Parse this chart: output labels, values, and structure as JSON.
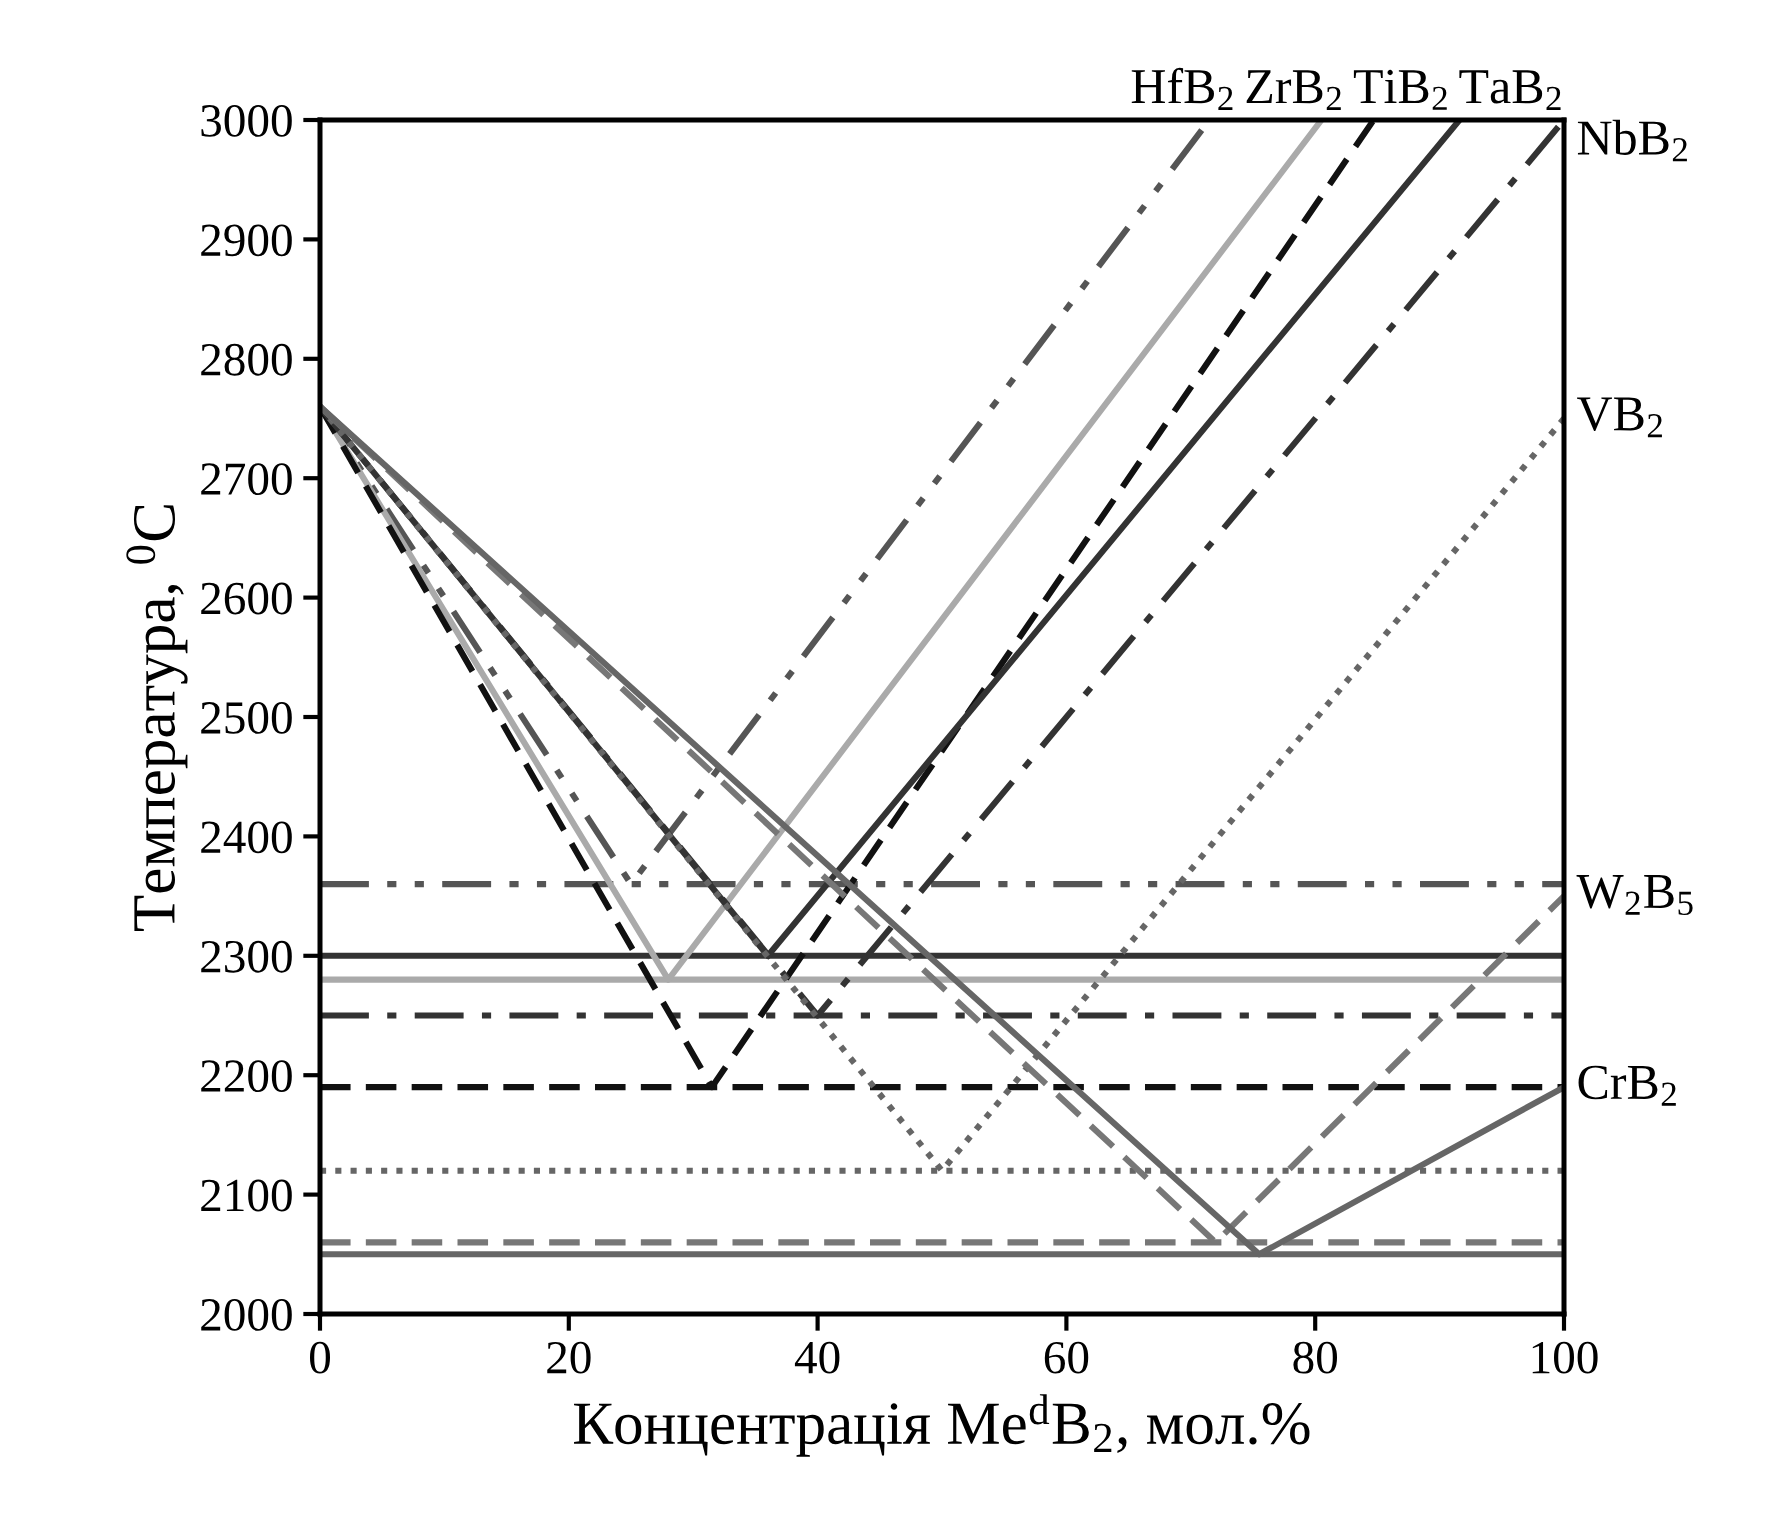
{
  "chart_data": {
    "type": "line",
    "xlabel": "Концентрація Me$^{d}$B$_{2}$, мол.%",
    "ylabel": "Температура, $^{0}$C",
    "xlim": [
      0,
      100
    ],
    "ylim": [
      2000,
      3000
    ],
    "xticks": [
      0,
      20,
      40,
      60,
      80,
      100
    ],
    "yticks": [
      2000,
      2100,
      2200,
      2300,
      2400,
      2500,
      2600,
      2700,
      2800,
      2900,
      3000
    ],
    "grid": false,
    "legend": false,
    "marker": "none",
    "series": [
      {
        "name": "HfB$_{2}$",
        "color": "#555555",
        "line_style": "dashdotdot",
        "x": [
          0,
          25,
          71.5
        ],
        "values": [
          2760,
          2360,
          3000
        ]
      },
      {
        "name": "ZrB$_{2}$",
        "color": "#aaaaaa",
        "line_style": "solid",
        "x": [
          0,
          28,
          80.5
        ],
        "values": [
          2760,
          2280,
          3000
        ]
      },
      {
        "name": "TiB$_{2}$",
        "color": "#111111",
        "line_style": "dashed",
        "x": [
          0,
          31.5,
          84.7
        ],
        "values": [
          2760,
          2190,
          3000
        ]
      },
      {
        "name": "TaB$_{2}$",
        "color": "#333333",
        "line_style": "solid",
        "x": [
          0,
          36,
          91.6
        ],
        "values": [
          2760,
          2300,
          3000
        ]
      },
      {
        "name": "NbB$_{2}$",
        "color": "#333333",
        "line_style": "dashdot",
        "x": [
          0,
          40,
          100
        ],
        "values": [
          2760,
          2250,
          3000
        ]
      },
      {
        "name": "VB$_{2}$",
        "color": "#666666",
        "line_style": "dotted",
        "x": [
          0,
          50,
          100
        ],
        "values": [
          2760,
          2120,
          2750
        ]
      },
      {
        "name": "W$_{2}$B$_{5}$",
        "color": "#777777",
        "line_style": "dashed",
        "x": [
          0,
          72,
          100
        ],
        "values": [
          2760,
          2060,
          2350
        ]
      },
      {
        "name": "CrB$_{2}$",
        "color": "#666666",
        "line_style": "solid",
        "x": [
          0,
          75.5,
          100
        ],
        "values": [
          2760,
          2050,
          2190
        ]
      }
    ],
    "ref_lines": [
      {
        "axis": "y",
        "value": 2360,
        "color": "#555555",
        "line_style": "dashdotdot"
      },
      {
        "axis": "y",
        "value": 2280,
        "color": "#aaaaaa",
        "line_style": "solid"
      },
      {
        "axis": "y",
        "value": 2190,
        "color": "#111111",
        "line_style": "dashed"
      },
      {
        "axis": "y",
        "value": 2300,
        "color": "#333333",
        "line_style": "solid"
      },
      {
        "axis": "y",
        "value": 2250,
        "color": "#333333",
        "line_style": "dashdot"
      },
      {
        "axis": "y",
        "value": 2120,
        "color": "#666666",
        "line_style": "dotted"
      },
      {
        "axis": "y",
        "value": 2060,
        "color": "#777777",
        "line_style": "dashed"
      },
      {
        "axis": "y",
        "value": 2050,
        "color": "#666666",
        "line_style": "solid"
      }
    ]
  }
}
